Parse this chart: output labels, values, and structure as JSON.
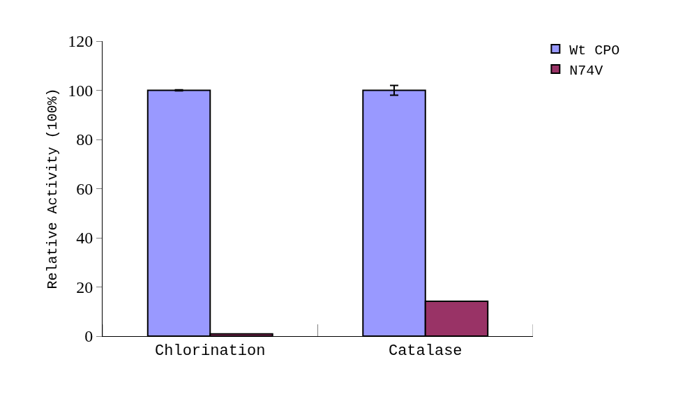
{
  "chart_data": {
    "type": "bar",
    "ylabel": "Relative Activity (100%)",
    "categories": [
      "Chlorination",
      "Catalase"
    ],
    "series": [
      {
        "name": "Wt CPO",
        "color": "#9999ff",
        "values": [
          100,
          100
        ],
        "errors": [
          0.2,
          2
        ]
      },
      {
        "name": "N74V",
        "color": "#993366",
        "values": [
          0.9,
          14.2
        ]
      }
    ],
    "ylim": [
      0,
      120
    ],
    "yticks": [
      0,
      20,
      40,
      60,
      80,
      100,
      120
    ],
    "legend": "top right"
  }
}
